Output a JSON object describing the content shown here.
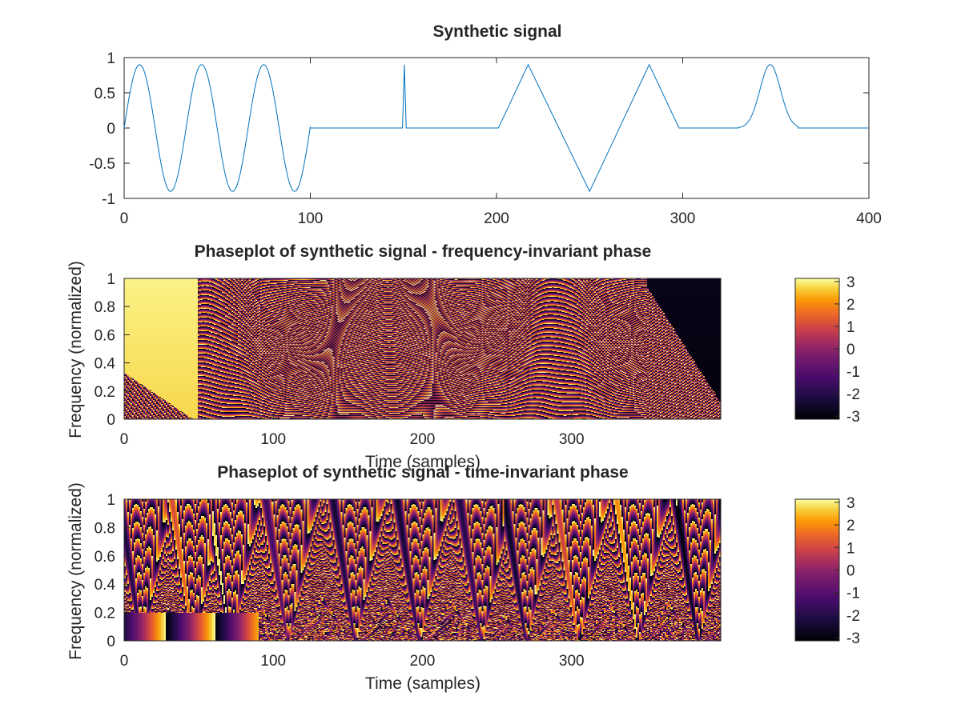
{
  "chart_data": [
    {
      "type": "line",
      "title": "Synthetic signal",
      "xlabel": "",
      "ylabel": "",
      "xlim": [
        0,
        400
      ],
      "ylim": [
        -1,
        1
      ],
      "x_ticks": [
        "0",
        "100",
        "200",
        "300",
        "400"
      ],
      "y_ticks": [
        "1",
        "0.5",
        "0",
        "-0.5",
        "-1"
      ],
      "series": [
        {
          "color": "#0072bd",
          "segments": [
            {
              "kind": "sine",
              "x_start": 0,
              "x_end": 100,
              "amplitude": 0.9,
              "period": 33.3
            },
            {
              "kind": "zero",
              "x_start": 100,
              "x_end": 149
            },
            {
              "kind": "spike",
              "x": 150.5,
              "peak": 0.9
            },
            {
              "kind": "zero",
              "x_start": 152,
              "x_end": 201
            },
            {
              "kind": "triangle",
              "points": [
                [
                  201,
                  0
                ],
                [
                  217,
                  0.9
                ],
                [
                  250,
                  -0.9
                ],
                [
                  282,
                  0.9
                ],
                [
                  298,
                  0
                ]
              ]
            },
            {
              "kind": "zero",
              "x_start": 298,
              "x_end": 330
            },
            {
              "kind": "gaussian",
              "center": 347,
              "peak": 0.9,
              "width": 5.5
            },
            {
              "kind": "zero",
              "x_start": 362,
              "x_end": 400
            }
          ]
        }
      ]
    },
    {
      "type": "heatmap",
      "title": "Phaseplot of synthetic signal - frequency-invariant phase",
      "xlabel": "Time (samples)",
      "ylabel": "Frequency (normalized)",
      "xlim": [
        0,
        400
      ],
      "ylim": [
        0,
        1
      ],
      "x_ticks": [
        "0",
        "100",
        "200",
        "300"
      ],
      "y_ticks": [
        "1",
        "0.8",
        "0.6",
        "0.4",
        "0.2",
        "0"
      ],
      "colorbar": {
        "range": [
          -3.14,
          3.14
        ],
        "ticks": [
          "3",
          "2",
          "1",
          "0",
          "-1",
          "-2",
          "-3"
        ],
        "colormap": "inferno"
      }
    },
    {
      "type": "heatmap",
      "title": "Phaseplot of synthetic signal - time-invariant phase",
      "xlabel": "Time (samples)",
      "ylabel": "Frequency (normalized)",
      "xlim": [
        0,
        400
      ],
      "ylim": [
        0,
        1
      ],
      "x_ticks": [
        "0",
        "100",
        "200",
        "300"
      ],
      "y_ticks": [
        "1",
        "0.8",
        "0.6",
        "0.4",
        "0.2",
        "0"
      ],
      "colorbar": {
        "range": [
          -3.14,
          3.14
        ],
        "ticks": [
          "3",
          "2",
          "1",
          "0",
          "-1",
          "-2",
          "-3"
        ],
        "colormap": "inferno"
      }
    }
  ]
}
